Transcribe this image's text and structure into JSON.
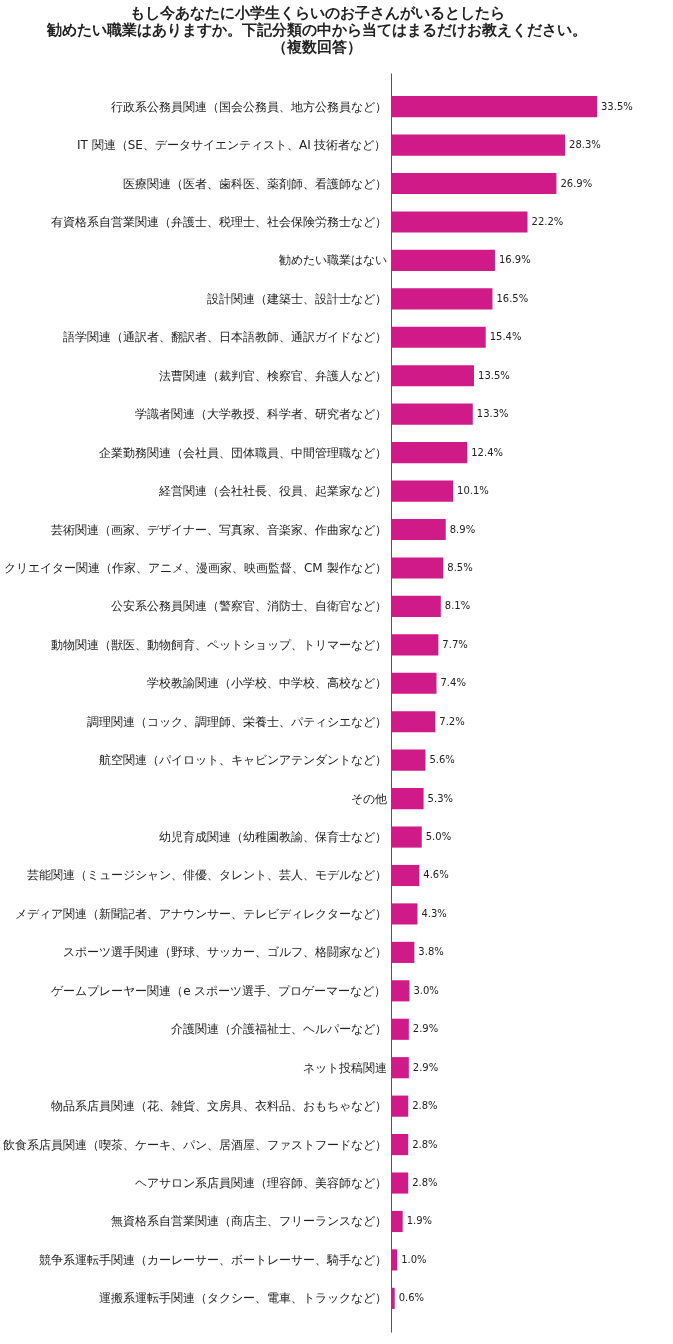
{
  "chart_data": {
    "type": "bar",
    "orientation": "horizontal",
    "title": [
      "もし今あなたに小学生くらいのお子さんがいるとしたら",
      "勧めたい職業はありますか。下記分類の中から当てはまるだけお教えください。",
      "（複数回答）"
    ],
    "color": "#cf1a88",
    "categories": [
      "行政系公務員関連（国会公務員、地方公務員など）",
      "IT 関連（SE、データサイエンティスト、AI 技術者など）",
      "医療関連（医者、歯科医、薬剤師、看護師など）",
      "有資格系自営業関連（弁護士、税理士、社会保険労務士など）",
      "勧めたい職業はない",
      "設計関連（建築士、設計士など）",
      "語学関連（通訳者、翻訳者、日本語教師、通訳ガイドなど）",
      "法曹関連（裁判官、検察官、弁護人など）",
      "学識者関連（大学教授、科学者、研究者など）",
      "企業勤務関連（会社員、団体職員、中間管理職など）",
      "経営関連（会社社長、役員、起業家など）",
      "芸術関連（画家、デザイナー、写真家、音楽家、作曲家など）",
      "クリエイター関連（作家、アニメ、漫画家、映画監督、CM 製作など）",
      "公安系公務員関連（警察官、消防士、自衛官など）",
      "動物関連（獣医、動物飼育、ペットショップ、トリマーなど）",
      "学校教諭関連（小学校、中学校、高校など）",
      "調理関連（コック、調理師、栄養士、パティシエなど）",
      "航空関連（パイロット、キャビンアテンダントなど）",
      "その他",
      "幼児育成関連（幼稚園教諭、保育士など）",
      "芸能関連（ミュージシャン、俳優、タレント、芸人、モデルなど）",
      "メディア関連（新聞記者、アナウンサー、テレビディレクターなど）",
      "スポーツ選手関連（野球、サッカー、ゴルフ、格闘家など）",
      "ゲームプレーヤー関連（e スポーツ選手、プロゲーマーなど）",
      "介護関連（介護福祉士、ヘルパーなど）",
      "ネット投稿関連",
      "物品系店員関連（花、雑貨、文房具、衣料品、おもちゃなど）",
      "飲食系店員関連（喫茶、ケーキ、パン、居酒屋、ファストフードなど）",
      "ヘアサロン系店員関連（理容師、美容師など）",
      "無資格系自営業関連（商店主、フリーランスなど）",
      "競争系運転手関連（カーレーサー、ボートレーサー、騎手など）",
      "運搬系運転手関連（タクシー、電車、トラックなど）"
    ],
    "values": [
      33.5,
      28.3,
      26.9,
      22.2,
      16.9,
      16.5,
      15.4,
      13.5,
      13.3,
      12.4,
      10.1,
      8.9,
      8.5,
      8.1,
      7.7,
      7.4,
      7.2,
      5.6,
      5.3,
      5.0,
      4.6,
      4.3,
      3.8,
      3.0,
      2.9,
      2.9,
      2.8,
      2.8,
      2.8,
      1.9,
      1.0,
      0.6
    ],
    "value_labels": [
      "33.5%",
      "28.3%",
      "26.9%",
      "22.2%",
      "16.9%",
      "16.5%",
      "15.4%",
      "13.5%",
      "13.3%",
      "12.4%",
      "10.1%",
      "8.9%",
      "8.5%",
      "8.1%",
      "7.7%",
      "7.4%",
      "7.2%",
      "5.6%",
      "5.3%",
      "5.0%",
      "4.6%",
      "4.3%",
      "3.8%",
      "3.0%",
      "2.9%",
      "2.9%",
      "2.8%",
      "2.8%",
      "2.8%",
      "1.9%",
      "1.0%",
      "0.6%"
    ]
  }
}
